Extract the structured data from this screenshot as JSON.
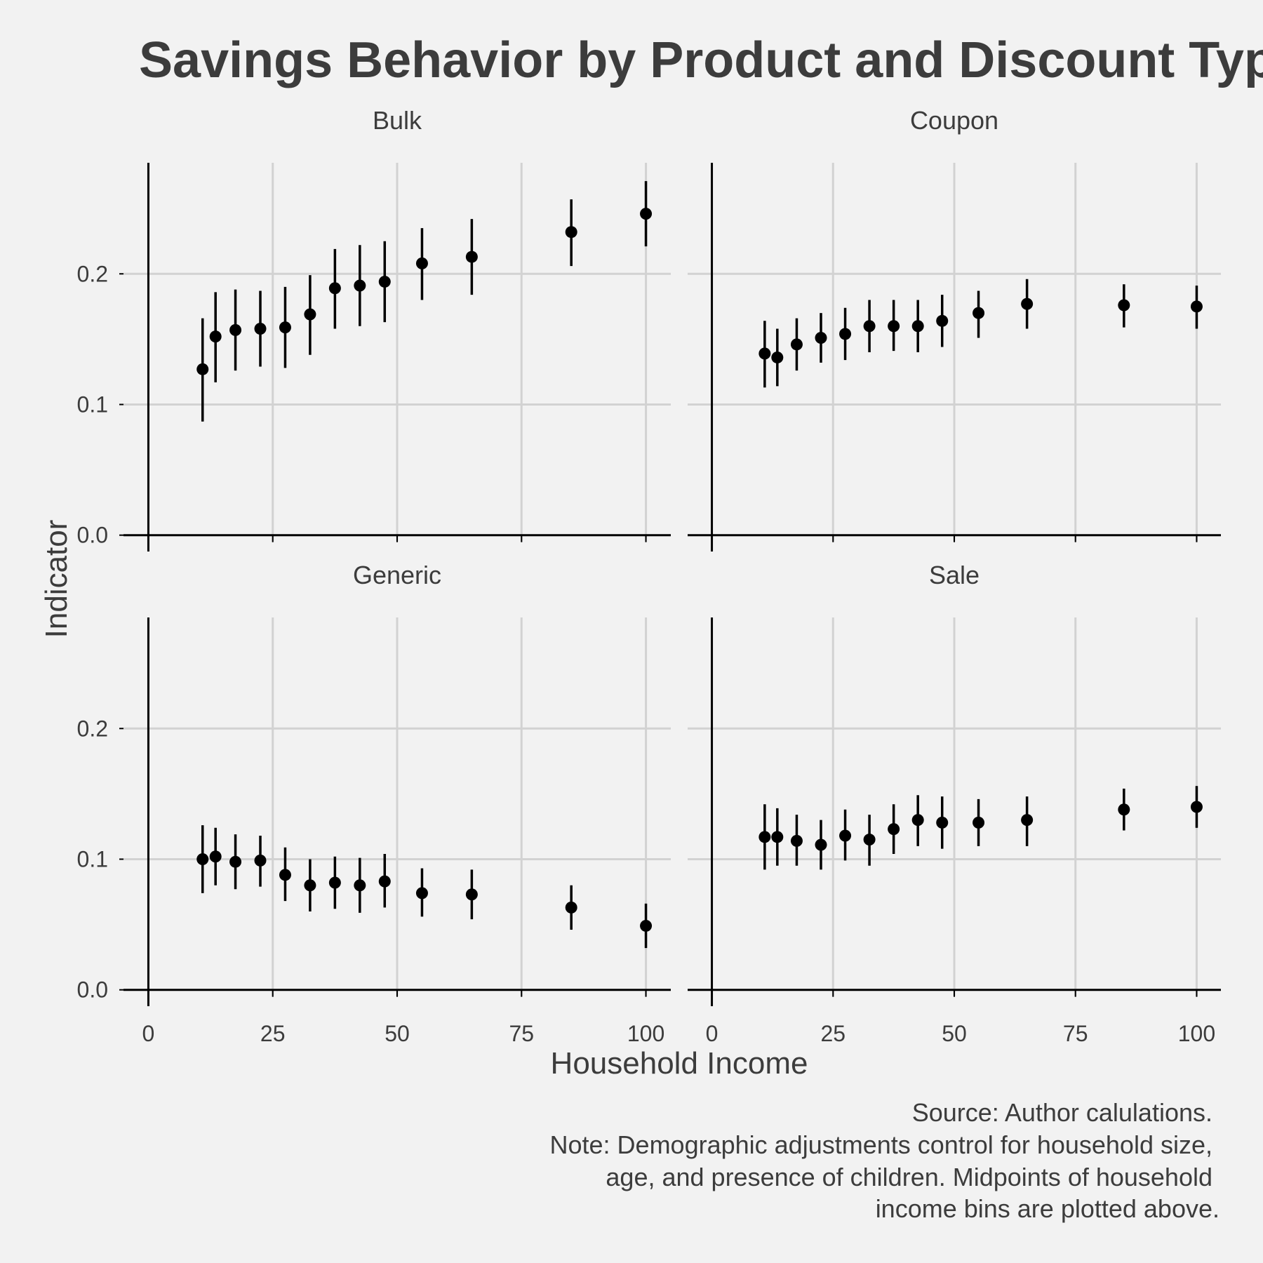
{
  "chart_data": {
    "type": "scatter",
    "title": "Savings Behavior by Product and Discount Type",
    "xlabel": "Household Income",
    "ylabel": "Indicator",
    "xlim": [
      -5,
      105
    ],
    "ylim": [
      -0.005,
      0.285
    ],
    "xticks": [
      "0",
      "25",
      "50",
      "75",
      "100"
    ],
    "yticks": [
      "0.0",
      "0.1",
      "0.2"
    ],
    "x": [
      10.9,
      13.5,
      17.5,
      22.5,
      27.5,
      32.5,
      37.5,
      42.5,
      47.5,
      55,
      65,
      85,
      100
    ],
    "grid": true,
    "legend": "none",
    "caption": [
      "Source: Author calulations.",
      "Note: Demographic adjustments control for household size,",
      "age, and presence of children. Midpoints of household",
      "income bins are plotted above."
    ],
    "panels": [
      {
        "name": "Bulk",
        "values": [
          0.127,
          0.152,
          0.157,
          0.158,
          0.159,
          0.169,
          0.189,
          0.191,
          0.194,
          0.208,
          0.213,
          0.232,
          0.246
        ],
        "lower": [
          0.087,
          0.117,
          0.126,
          0.129,
          0.128,
          0.138,
          0.158,
          0.16,
          0.163,
          0.18,
          0.184,
          0.206,
          0.221
        ],
        "upper": [
          0.166,
          0.186,
          0.188,
          0.187,
          0.19,
          0.199,
          0.219,
          0.222,
          0.225,
          0.235,
          0.242,
          0.257,
          0.271
        ]
      },
      {
        "name": "Coupon",
        "values": [
          0.139,
          0.136,
          0.146,
          0.151,
          0.154,
          0.16,
          0.16,
          0.16,
          0.164,
          0.17,
          0.177,
          0.176,
          0.175
        ],
        "lower": [
          0.113,
          0.114,
          0.126,
          0.132,
          0.134,
          0.14,
          0.141,
          0.14,
          0.144,
          0.151,
          0.158,
          0.159,
          0.158
        ],
        "upper": [
          0.164,
          0.158,
          0.166,
          0.17,
          0.174,
          0.18,
          0.18,
          0.18,
          0.184,
          0.187,
          0.196,
          0.192,
          0.191
        ]
      },
      {
        "name": "Generic",
        "values": [
          0.1,
          0.102,
          0.098,
          0.099,
          0.088,
          0.08,
          0.082,
          0.08,
          0.083,
          0.074,
          0.073,
          0.063,
          0.049
        ],
        "lower": [
          0.074,
          0.08,
          0.077,
          0.079,
          0.068,
          0.06,
          0.062,
          0.059,
          0.063,
          0.056,
          0.054,
          0.046,
          0.032
        ],
        "upper": [
          0.126,
          0.124,
          0.119,
          0.118,
          0.109,
          0.1,
          0.102,
          0.101,
          0.104,
          0.093,
          0.092,
          0.08,
          0.066
        ]
      },
      {
        "name": "Sale",
        "values": [
          0.117,
          0.117,
          0.114,
          0.111,
          0.118,
          0.115,
          0.123,
          0.13,
          0.128,
          0.128,
          0.13,
          0.138,
          0.14
        ],
        "lower": [
          0.092,
          0.095,
          0.095,
          0.092,
          0.099,
          0.095,
          0.104,
          0.11,
          0.108,
          0.11,
          0.11,
          0.122,
          0.124
        ],
        "upper": [
          0.142,
          0.139,
          0.134,
          0.13,
          0.138,
          0.134,
          0.142,
          0.149,
          0.148,
          0.146,
          0.148,
          0.154,
          0.156
        ]
      }
    ]
  }
}
